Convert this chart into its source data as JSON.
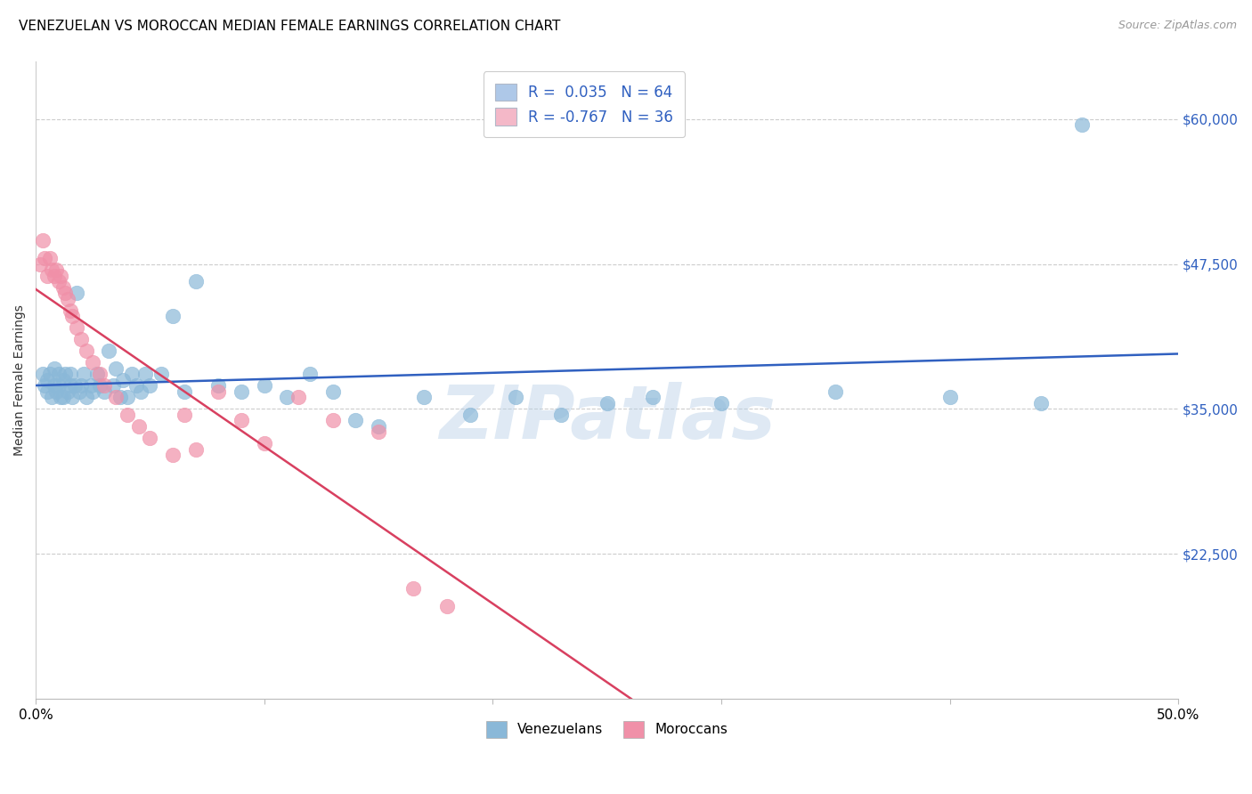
{
  "title": "VENEZUELAN VS MOROCCAN MEDIAN FEMALE EARNINGS CORRELATION CHART",
  "source": "Source: ZipAtlas.com",
  "ylabel": "Median Female Earnings",
  "xlim": [
    0.0,
    0.5
  ],
  "ylim": [
    10000,
    65000
  ],
  "yticks": [
    22500,
    35000,
    47500,
    60000
  ],
  "ytick_labels": [
    "$22,500",
    "$35,000",
    "$47,500",
    "$60,000"
  ],
  "xtick_vals": [
    0.0,
    0.1,
    0.2,
    0.3,
    0.4,
    0.5
  ],
  "xtick_labels_show": [
    "0.0%",
    "",
    "",
    "",
    "",
    "50.0%"
  ],
  "watermark": "ZIPatlas",
  "r_ven": 0.035,
  "n_ven": 64,
  "r_mor": -0.767,
  "n_mor": 36,
  "venezuelan_face_color": "#8ab8d8",
  "moroccan_face_color": "#f090a8",
  "venezuelan_line_color": "#3060c0",
  "moroccan_line_color": "#d84060",
  "legend_box_ven": "#aec8e8",
  "legend_box_mor": "#f4b8c8",
  "bottom_legend_labels": [
    "Venezuelans",
    "Moroccans"
  ],
  "venezuelans_x": [
    0.003,
    0.004,
    0.005,
    0.005,
    0.006,
    0.007,
    0.008,
    0.008,
    0.009,
    0.01,
    0.01,
    0.011,
    0.012,
    0.012,
    0.013,
    0.014,
    0.015,
    0.015,
    0.016,
    0.017,
    0.018,
    0.019,
    0.02,
    0.021,
    0.022,
    0.024,
    0.025,
    0.027,
    0.028,
    0.03,
    0.032,
    0.034,
    0.035,
    0.037,
    0.038,
    0.04,
    0.042,
    0.044,
    0.046,
    0.048,
    0.05,
    0.055,
    0.06,
    0.065,
    0.07,
    0.08,
    0.09,
    0.1,
    0.11,
    0.12,
    0.13,
    0.14,
    0.15,
    0.17,
    0.19,
    0.21,
    0.23,
    0.25,
    0.27,
    0.3,
    0.35,
    0.4,
    0.44,
    0.458
  ],
  "venezuelans_y": [
    38000,
    37000,
    36500,
    37500,
    38000,
    36000,
    37000,
    38500,
    36500,
    37000,
    38000,
    36000,
    37500,
    36000,
    38000,
    36500,
    37000,
    38000,
    36000,
    37000,
    45000,
    36500,
    37000,
    38000,
    36000,
    37000,
    36500,
    38000,
    37000,
    36500,
    40000,
    37000,
    38500,
    36000,
    37500,
    36000,
    38000,
    37000,
    36500,
    38000,
    37000,
    38000,
    43000,
    36500,
    46000,
    37000,
    36500,
    37000,
    36000,
    38000,
    36500,
    34000,
    33500,
    36000,
    34500,
    36000,
    34500,
    35500,
    36000,
    35500,
    36500,
    36000,
    35500,
    59500
  ],
  "moroccans_x": [
    0.002,
    0.003,
    0.004,
    0.005,
    0.006,
    0.007,
    0.008,
    0.009,
    0.01,
    0.011,
    0.012,
    0.013,
    0.014,
    0.015,
    0.016,
    0.018,
    0.02,
    0.022,
    0.025,
    0.028,
    0.03,
    0.035,
    0.04,
    0.045,
    0.05,
    0.06,
    0.065,
    0.07,
    0.08,
    0.09,
    0.1,
    0.115,
    0.13,
    0.15,
    0.165,
    0.18
  ],
  "moroccans_y": [
    47500,
    49500,
    48000,
    46500,
    48000,
    47000,
    46500,
    47000,
    46000,
    46500,
    45500,
    45000,
    44500,
    43500,
    43000,
    42000,
    41000,
    40000,
    39000,
    38000,
    37000,
    36000,
    34500,
    33500,
    32500,
    31000,
    34500,
    31500,
    36500,
    34000,
    32000,
    36000,
    34000,
    33000,
    19500,
    18000
  ]
}
